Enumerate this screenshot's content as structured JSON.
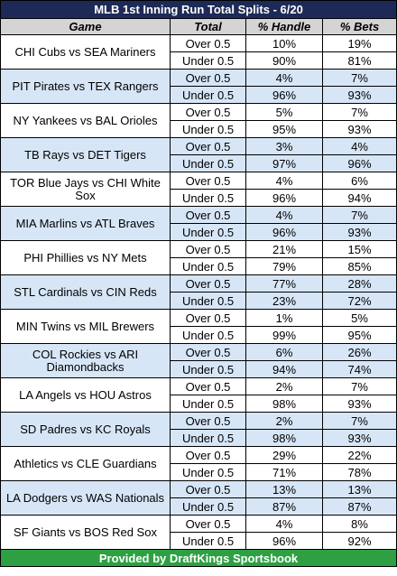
{
  "title": "MLB 1st Inning Run Total Splits - 6/20",
  "columns": [
    "Game",
    "Total",
    "% Handle",
    "% Bets"
  ],
  "colors": {
    "title_bg": "#1d2a57",
    "header_bg": "#d4d4d4",
    "alt_row_bg": "#d7e6f7",
    "footer_bg": "#2ea043"
  },
  "games": [
    {
      "game": "CHI Cubs vs SEA Mariners",
      "rows": [
        {
          "total": "Over 0.5",
          "handle": "10%",
          "bets": "19%"
        },
        {
          "total": "Under 0.5",
          "handle": "90%",
          "bets": "81%"
        }
      ]
    },
    {
      "game": "PIT Pirates vs TEX Rangers",
      "rows": [
        {
          "total": "Over 0.5",
          "handle": "4%",
          "bets": "7%"
        },
        {
          "total": "Under 0.5",
          "handle": "96%",
          "bets": "93%"
        }
      ]
    },
    {
      "game": "NY Yankees vs BAL Orioles",
      "rows": [
        {
          "total": "Over 0.5",
          "handle": "5%",
          "bets": "7%"
        },
        {
          "total": "Under 0.5",
          "handle": "95%",
          "bets": "93%"
        }
      ]
    },
    {
      "game": "TB Rays vs DET Tigers",
      "rows": [
        {
          "total": "Over 0.5",
          "handle": "3%",
          "bets": "4%"
        },
        {
          "total": "Under 0.5",
          "handle": "97%",
          "bets": "96%"
        }
      ]
    },
    {
      "game": "TOR Blue Jays vs CHI White Sox",
      "rows": [
        {
          "total": "Over 0.5",
          "handle": "4%",
          "bets": "6%"
        },
        {
          "total": "Under 0.5",
          "handle": "96%",
          "bets": "94%"
        }
      ]
    },
    {
      "game": "MIA Marlins vs ATL Braves",
      "rows": [
        {
          "total": "Over 0.5",
          "handle": "4%",
          "bets": "7%"
        },
        {
          "total": "Under 0.5",
          "handle": "96%",
          "bets": "93%"
        }
      ]
    },
    {
      "game": "PHI Phillies vs NY Mets",
      "rows": [
        {
          "total": "Over 0.5",
          "handle": "21%",
          "bets": "15%"
        },
        {
          "total": "Under 0.5",
          "handle": "79%",
          "bets": "85%"
        }
      ]
    },
    {
      "game": "STL Cardinals vs CIN Reds",
      "rows": [
        {
          "total": "Over 0.5",
          "handle": "77%",
          "bets": "28%"
        },
        {
          "total": "Under 0.5",
          "handle": "23%",
          "bets": "72%"
        }
      ]
    },
    {
      "game": "MIN Twins vs MIL Brewers",
      "rows": [
        {
          "total": "Over 0.5",
          "handle": "1%",
          "bets": "5%"
        },
        {
          "total": "Under 0.5",
          "handle": "99%",
          "bets": "95%"
        }
      ]
    },
    {
      "game": "COL Rockies vs ARI Diamondbacks",
      "rows": [
        {
          "total": "Over 0.5",
          "handle": "6%",
          "bets": "26%"
        },
        {
          "total": "Under 0.5",
          "handle": "94%",
          "bets": "74%"
        }
      ]
    },
    {
      "game": "LA Angels vs HOU Astros",
      "rows": [
        {
          "total": "Over 0.5",
          "handle": "2%",
          "bets": "7%"
        },
        {
          "total": "Under 0.5",
          "handle": "98%",
          "bets": "93%"
        }
      ]
    },
    {
      "game": "SD Padres vs KC Royals",
      "rows": [
        {
          "total": "Over 0.5",
          "handle": "2%",
          "bets": "7%"
        },
        {
          "total": "Under 0.5",
          "handle": "98%",
          "bets": "93%"
        }
      ]
    },
    {
      "game": "Athletics vs CLE Guardians",
      "rows": [
        {
          "total": "Over 0.5",
          "handle": "29%",
          "bets": "22%"
        },
        {
          "total": "Under 0.5",
          "handle": "71%",
          "bets": "78%"
        }
      ]
    },
    {
      "game": "LA Dodgers vs WAS Nationals",
      "rows": [
        {
          "total": "Over 0.5",
          "handle": "13%",
          "bets": "13%"
        },
        {
          "total": "Under 0.5",
          "handle": "87%",
          "bets": "87%"
        }
      ]
    },
    {
      "game": "SF Giants vs BOS Red Sox",
      "rows": [
        {
          "total": "Over 0.5",
          "handle": "4%",
          "bets": "8%"
        },
        {
          "total": "Under 0.5",
          "handle": "96%",
          "bets": "92%"
        }
      ]
    }
  ],
  "footer": "Provided by DraftKings Sportsbook"
}
